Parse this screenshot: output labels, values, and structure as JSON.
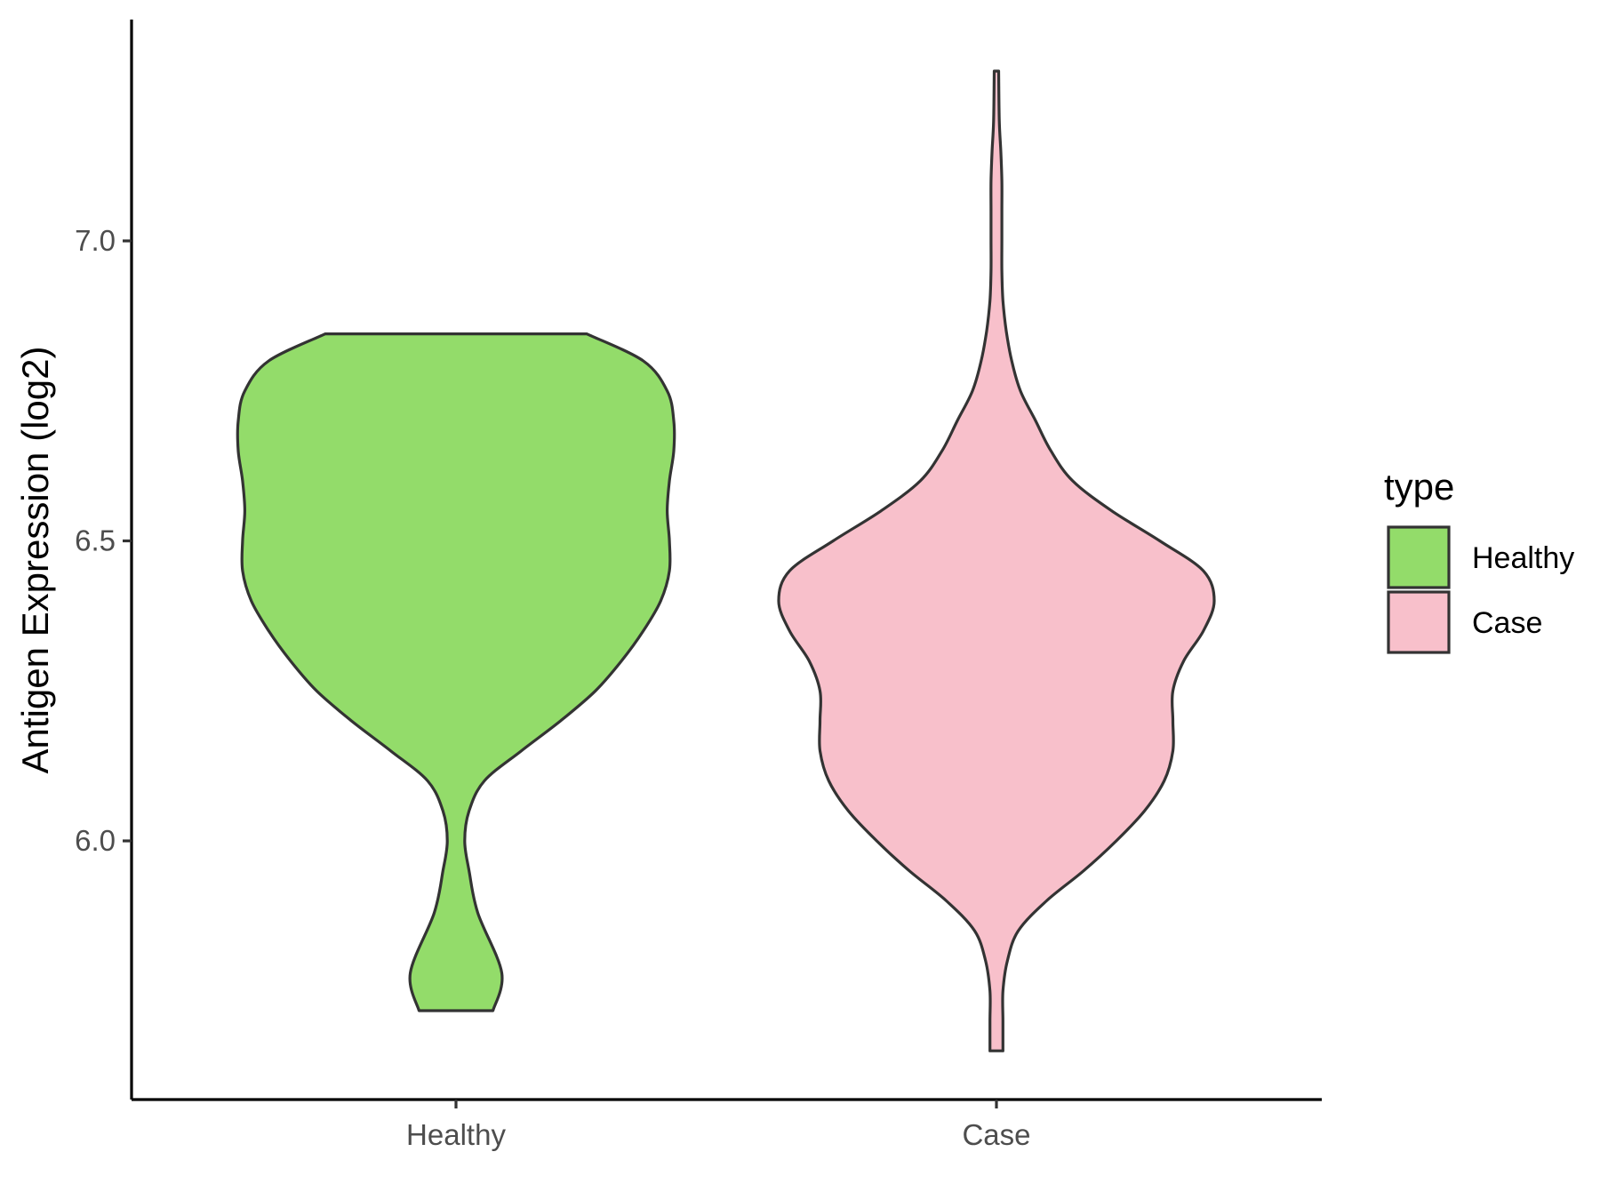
{
  "chart_data": {
    "type": "violin",
    "title": "",
    "xlabel": "",
    "ylabel": "Antigen Expression (log2)",
    "ylim": [
      5.56,
      7.36
    ],
    "y_ticks": [
      6.0,
      6.5,
      7.0
    ],
    "y_tick_labels": [
      "6.0",
      "6.5",
      "7.0"
    ],
    "categories": [
      "Healthy",
      "Case"
    ],
    "grid": false,
    "legend": {
      "title": "type",
      "position": "right",
      "entries": [
        {
          "label": "Healthy",
          "color": "#93DC6A"
        },
        {
          "label": "Case",
          "color": "#F8C0CB"
        }
      ]
    },
    "series": [
      {
        "category": "Healthy",
        "color": "#93DC6A",
        "density": [
          {
            "y": 5.717,
            "w": 0.17
          },
          {
            "y": 5.78,
            "w": 0.21
          },
          {
            "y": 5.88,
            "w": 0.1
          },
          {
            "y": 5.95,
            "w": 0.06
          },
          {
            "y": 6.0,
            "w": 0.04
          },
          {
            "y": 6.05,
            "w": 0.06
          },
          {
            "y": 6.1,
            "w": 0.13
          },
          {
            "y": 6.15,
            "w": 0.3
          },
          {
            "y": 6.2,
            "w": 0.48
          },
          {
            "y": 6.25,
            "w": 0.64
          },
          {
            "y": 6.3,
            "w": 0.76
          },
          {
            "y": 6.35,
            "w": 0.86
          },
          {
            "y": 6.4,
            "w": 0.94
          },
          {
            "y": 6.45,
            "w": 0.98
          },
          {
            "y": 6.5,
            "w": 0.98
          },
          {
            "y": 6.55,
            "w": 0.97
          },
          {
            "y": 6.6,
            "w": 0.98
          },
          {
            "y": 6.65,
            "w": 1.0
          },
          {
            "y": 6.7,
            "w": 1.0
          },
          {
            "y": 6.75,
            "w": 0.97
          },
          {
            "y": 6.8,
            "w": 0.86
          },
          {
            "y": 6.845,
            "w": 0.6
          }
        ]
      },
      {
        "category": "Case",
        "color": "#F8C0CB",
        "density": [
          {
            "y": 5.65,
            "w": 0.03
          },
          {
            "y": 5.7,
            "w": 0.03
          },
          {
            "y": 5.75,
            "w": 0.03
          },
          {
            "y": 5.8,
            "w": 0.05
          },
          {
            "y": 5.85,
            "w": 0.1
          },
          {
            "y": 5.9,
            "w": 0.23
          },
          {
            "y": 5.95,
            "w": 0.4
          },
          {
            "y": 6.0,
            "w": 0.55
          },
          {
            "y": 6.05,
            "w": 0.68
          },
          {
            "y": 6.1,
            "w": 0.77
          },
          {
            "y": 6.15,
            "w": 0.81
          },
          {
            "y": 6.2,
            "w": 0.81
          },
          {
            "y": 6.25,
            "w": 0.81
          },
          {
            "y": 6.3,
            "w": 0.86
          },
          {
            "y": 6.35,
            "w": 0.95
          },
          {
            "y": 6.4,
            "w": 1.0
          },
          {
            "y": 6.45,
            "w": 0.95
          },
          {
            "y": 6.5,
            "w": 0.75
          },
          {
            "y": 6.55,
            "w": 0.53
          },
          {
            "y": 6.6,
            "w": 0.35
          },
          {
            "y": 6.65,
            "w": 0.25
          },
          {
            "y": 6.7,
            "w": 0.18
          },
          {
            "y": 6.75,
            "w": 0.11
          },
          {
            "y": 6.8,
            "w": 0.07
          },
          {
            "y": 6.85,
            "w": 0.045
          },
          {
            "y": 6.9,
            "w": 0.03
          },
          {
            "y": 6.95,
            "w": 0.025
          },
          {
            "y": 7.0,
            "w": 0.025
          },
          {
            "y": 7.05,
            "w": 0.025
          },
          {
            "y": 7.1,
            "w": 0.025
          },
          {
            "y": 7.15,
            "w": 0.02
          },
          {
            "y": 7.2,
            "w": 0.013
          },
          {
            "y": 7.283,
            "w": 0.01
          }
        ]
      }
    ]
  }
}
